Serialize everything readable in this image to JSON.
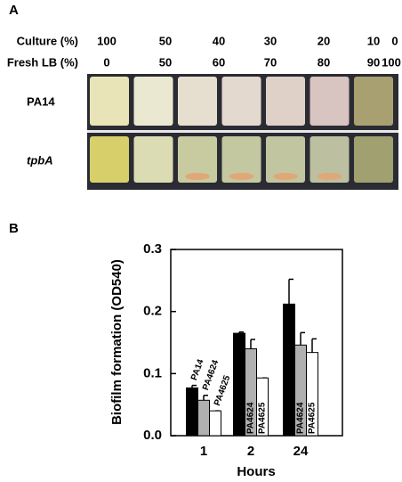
{
  "panel_a": {
    "label": "A",
    "culture_label": "Culture (%)",
    "culture": [
      100,
      50,
      40,
      30,
      20,
      10,
      0
    ],
    "fresh_label": "Fresh LB (%)",
    "fresh": [
      0,
      50,
      60,
      70,
      80,
      90,
      100
    ],
    "rows": [
      "PA14",
      "tpbA"
    ]
  },
  "panel_b": {
    "label": "B"
  },
  "chart_data": {
    "type": "bar",
    "categories": [
      "1",
      "2",
      "24"
    ],
    "x_label": "Hours",
    "y_label": "Biofilm formation (OD540)",
    "series": [
      {
        "name": "PA14",
        "color": "#000000",
        "values": [
          0.077,
          0.165,
          0.212
        ],
        "errors": [
          0.004,
          0.002,
          0.04
        ]
      },
      {
        "name": "PA4624",
        "color": "#b0b0b0",
        "values": [
          0.057,
          0.14,
          0.146
        ],
        "errors": [
          0.008,
          0.015,
          0.02
        ]
      },
      {
        "name": "PA4625",
        "color": "#ffffff",
        "values": [
          0.04,
          0.093,
          0.134
        ],
        "errors": [
          0,
          0,
          0.022
        ]
      }
    ],
    "ylim": [
      0,
      0.3
    ],
    "yticks": [
      {
        "value": 0,
        "label": "0.0"
      },
      0.1,
      0.2,
      0.3
    ]
  }
}
